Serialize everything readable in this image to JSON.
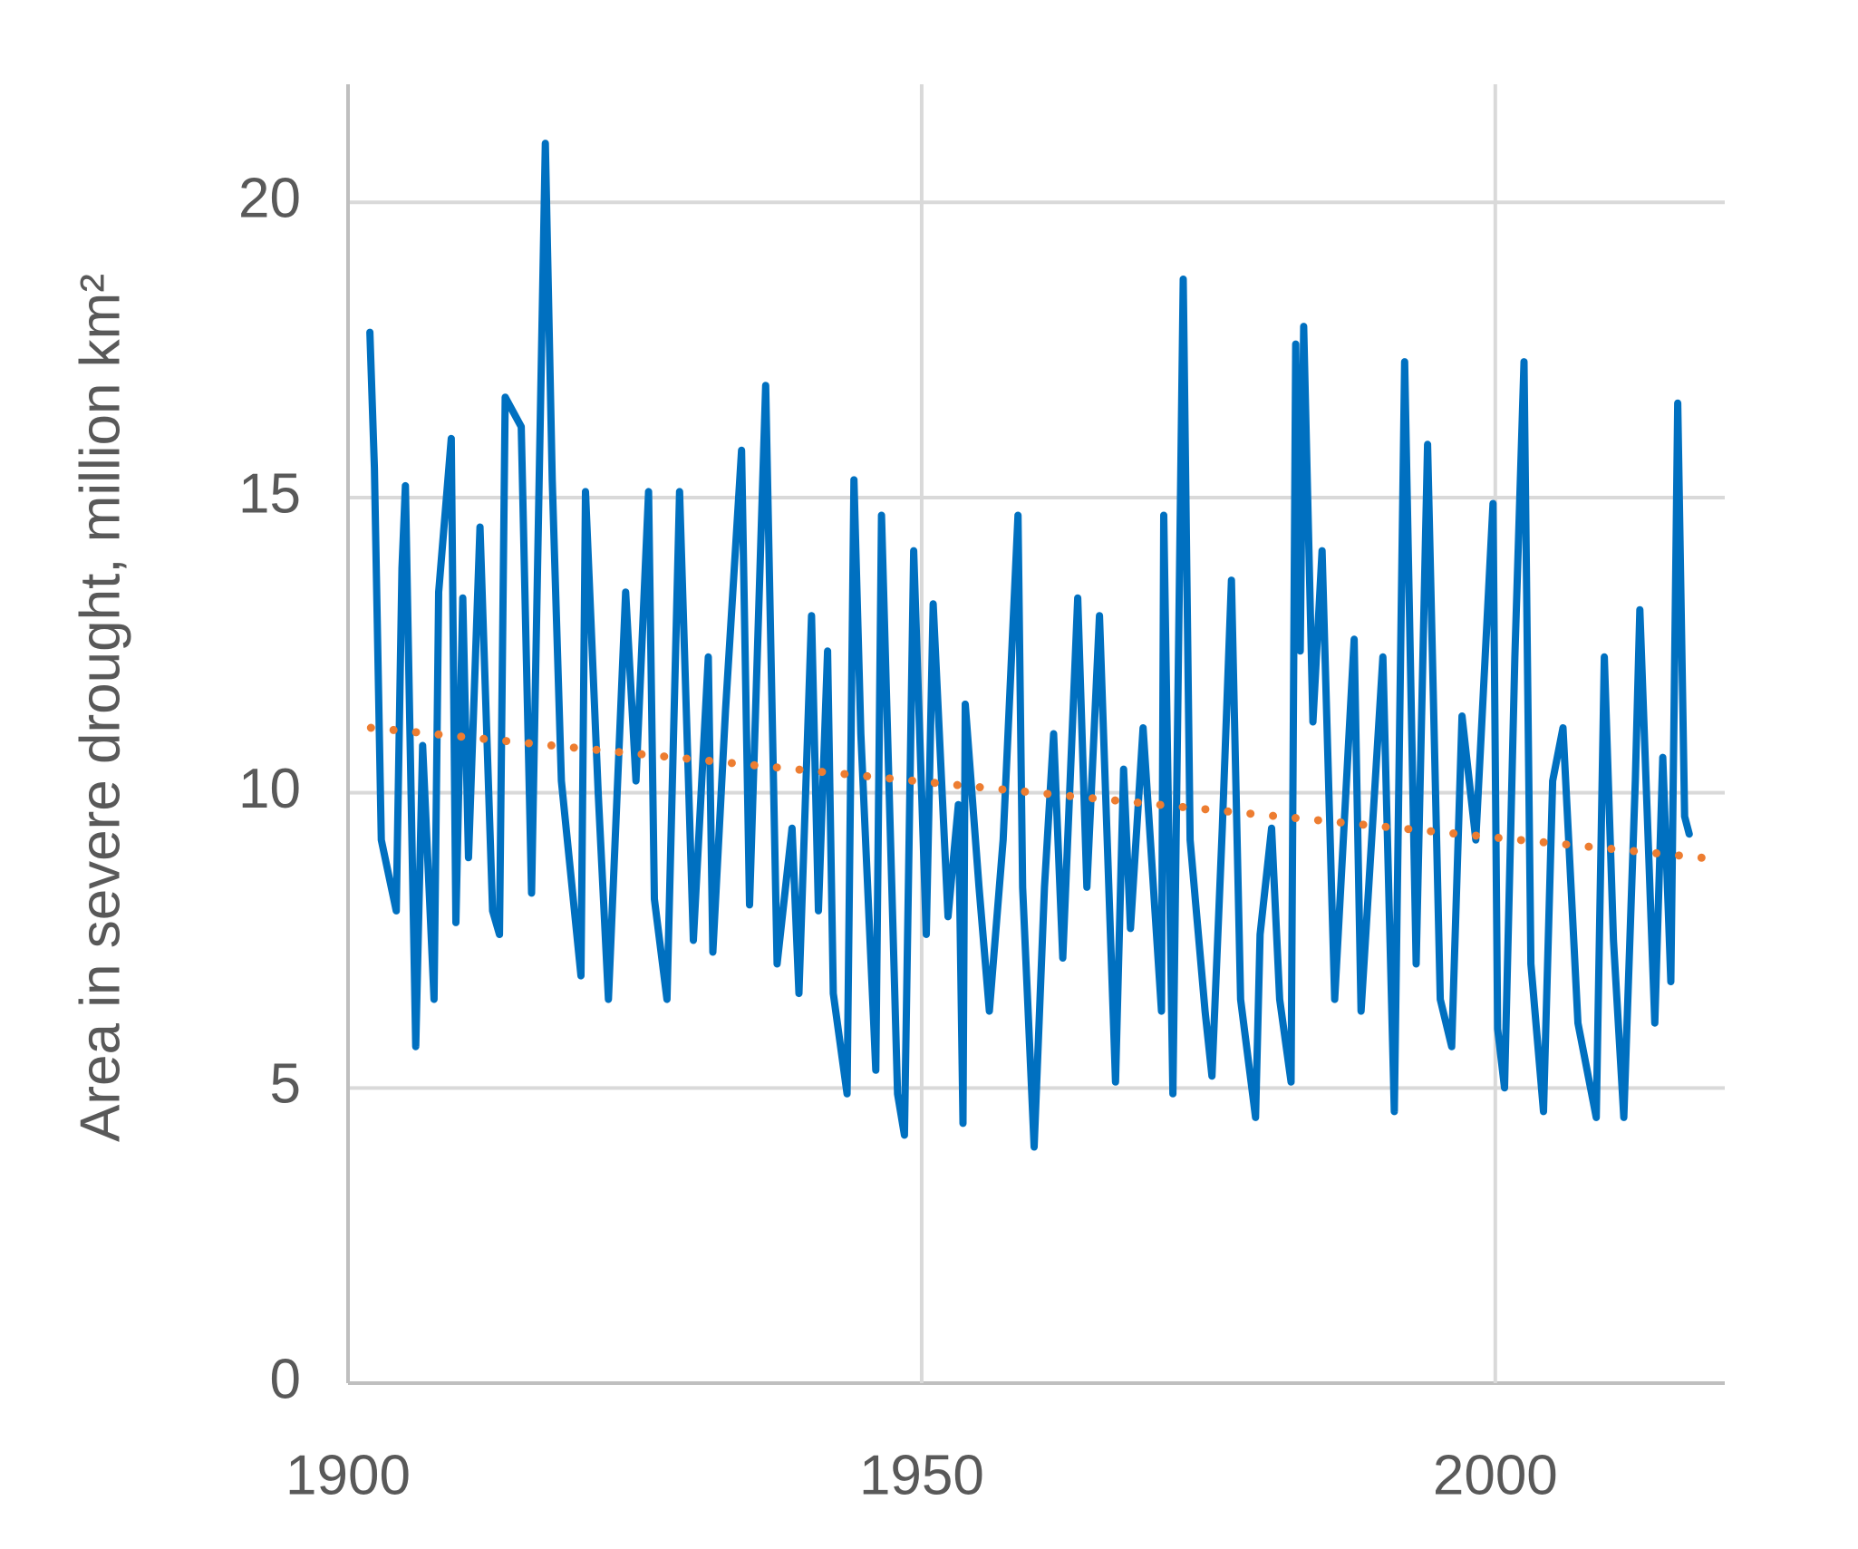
{
  "chart_data": {
    "type": "line",
    "y_label": "Area in severe drought, million km²",
    "xlim": [
      1900,
      2020
    ],
    "xticks": [
      1900,
      1950,
      2000
    ],
    "ylim": [
      0,
      22
    ],
    "yticks": [
      0,
      5,
      10,
      15,
      20
    ],
    "grid": true,
    "series": [
      {
        "color": "#0070c0",
        "style": "solid",
        "x": [
          1901.9,
          1902.3,
          1902.9,
          1904.2,
          1904.7,
          1905.0,
          1905.9,
          1906.5,
          1907.5,
          1907.9,
          1909.0,
          1909.4,
          1910.0,
          1910.5,
          1911.5,
          1912.6,
          1913.2,
          1913.7,
          1915.1,
          1916.0,
          1917.2,
          1917.8,
          1918.6,
          1920.3,
          1920.7,
          1921.8,
          1922.7,
          1924.2,
          1925.1,
          1926.2,
          1926.7,
          1927.8,
          1928.9,
          1930.1,
          1931.4,
          1931.8,
          1932.9,
          1934.3,
          1935.0,
          1936.4,
          1937.4,
          1938.7,
          1939.3,
          1940.4,
          1941.0,
          1941.8,
          1942.3,
          1943.5,
          1944.1,
          1944.7,
          1946.0,
          1946.5,
          1947.9,
          1948.5,
          1949.3,
          1950.4,
          1951.0,
          1952.3,
          1953.2,
          1953.6,
          1953.8,
          1955.0,
          1955.9,
          1957.1,
          1958.4,
          1958.8,
          1959.8,
          1960.7,
          1961.5,
          1962.3,
          1963.6,
          1964.4,
          1965.5,
          1966.9,
          1967.6,
          1968.2,
          1969.3,
          1970.9,
          1971.1,
          1971.9,
          1972.8,
          1973.4,
          1974.7,
          1975.3,
          1976.2,
          1977.0,
          1977.8,
          1979.1,
          1979.5,
          1980.5,
          1981.2,
          1982.2,
          1982.6,
          1983.0,
          1983.3,
          1984.1,
          1984.9,
          1986.0,
          1987.7,
          1988.3,
          1990.2,
          1991.2,
          1992.1,
          1993.1,
          1994.1,
          1995.2,
          1996.2,
          1997.1,
          1998.3,
          1999.8,
          2000.2,
          2000.8,
          2001.7,
          2002.5,
          2003.1,
          2004.2,
          2005.0,
          2005.9,
          2007.2,
          2008.8,
          2009.5,
          2010.3,
          2011.2,
          2012.2,
          2012.6,
          2013.9,
          2014.6,
          2015.3,
          2015.9,
          2016.5,
          2016.9
        ],
        "values": [
          17.8,
          15.5,
          9.2,
          8.0,
          13.8,
          15.2,
          5.7,
          10.8,
          6.5,
          13.4,
          16.0,
          7.8,
          13.3,
          8.9,
          14.5,
          8.0,
          7.6,
          16.7,
          16.2,
          8.3,
          21.0,
          15.3,
          10.2,
          6.9,
          15.1,
          10.0,
          6.5,
          13.4,
          10.2,
          15.1,
          8.2,
          6.5,
          15.1,
          7.5,
          12.3,
          7.3,
          11.4,
          15.8,
          8.1,
          16.9,
          7.1,
          9.4,
          6.6,
          13.0,
          8.0,
          12.4,
          6.6,
          4.9,
          15.3,
          11.0,
          5.3,
          14.7,
          4.9,
          4.2,
          14.1,
          7.6,
          13.2,
          7.9,
          9.8,
          4.4,
          11.5,
          8.4,
          6.3,
          9.2,
          14.7,
          8.4,
          4.0,
          8.4,
          11.0,
          7.2,
          13.3,
          8.4,
          13.0,
          5.1,
          10.4,
          7.7,
          11.1,
          6.3,
          14.7,
          4.9,
          18.7,
          9.2,
          6.3,
          5.2,
          9.4,
          13.6,
          6.5,
          4.5,
          7.6,
          9.4,
          6.5,
          5.1,
          17.6,
          12.4,
          17.9,
          11.2,
          14.1,
          6.5,
          12.6,
          6.3,
          12.3,
          4.6,
          17.3,
          7.1,
          15.9,
          6.5,
          5.7,
          11.3,
          9.2,
          14.9,
          6.0,
          5.0,
          12.3,
          17.3,
          7.1,
          4.6,
          10.2,
          11.1,
          6.1,
          4.5,
          12.3,
          7.5,
          4.5,
          10.2,
          13.1,
          6.1,
          10.6,
          6.8,
          16.6,
          9.6,
          9.3
        ]
      },
      {
        "color": "#ed7d31",
        "style": "dotted",
        "x": [
          1902,
          2018
        ],
        "values": [
          11.1,
          8.9
        ]
      }
    ]
  }
}
